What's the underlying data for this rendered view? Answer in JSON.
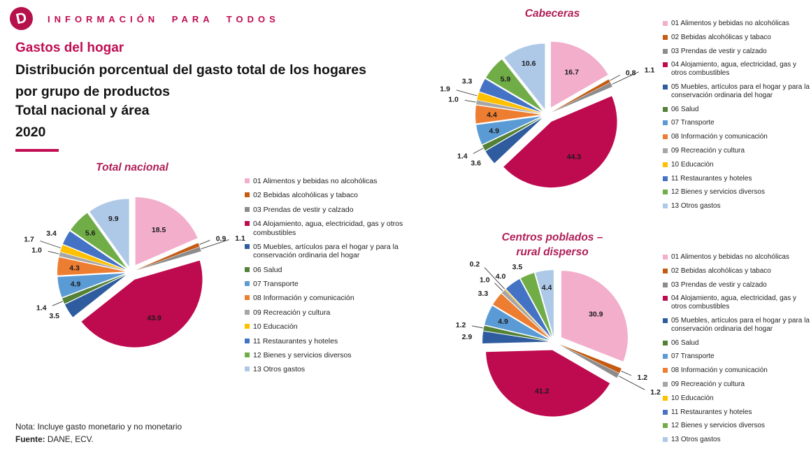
{
  "brand": {
    "logo_letter": "D",
    "tagline": "INFORMACIÓN PARA TODOS",
    "accent_color": "#C00D53"
  },
  "title_block": {
    "kicker": "Gastos del hogar",
    "heading": "Distribución porcentual del gasto total de los hogares por grupo de productos",
    "subheading": "Total nacional y área",
    "year": "2020"
  },
  "legend": {
    "items": [
      {
        "label": "01 Alimentos y bebidas no alcohólicas",
        "color": "#F2AECB"
      },
      {
        "label": "02 Bebidas alcohólicas y tabaco",
        "color": "#C55A11"
      },
      {
        "label": "03 Prendas de vestir y calzado",
        "color": "#8C8C8C"
      },
      {
        "label": "04 Alojamiento, agua, electricidad, gas y otros combustibles",
        "color": "#BE0A4E"
      },
      {
        "label": "05 Muebles, artículos para el hogar y para la conservación ordinaria del hogar",
        "color": "#2E5C9F"
      },
      {
        "label": "06 Salud",
        "color": "#538135"
      },
      {
        "label": "07 Transporte",
        "color": "#5B9BD5"
      },
      {
        "label": "08 Información y comunicación",
        "color": "#ED7D31"
      },
      {
        "label": "09 Recreación y cultura",
        "color": "#A6A6A6"
      },
      {
        "label": "10 Educación",
        "color": "#FFC000"
      },
      {
        "label": "11 Restaurantes y hoteles",
        "color": "#4472C4"
      },
      {
        "label": "12 Bienes y servicios diversos",
        "color": "#70AD47"
      },
      {
        "label": "13 Otros gastos",
        "color": "#AEC9E8"
      }
    ]
  },
  "chart_data": [
    {
      "type": "pie",
      "style": "exploded",
      "title": "Total nacional",
      "legend_position": "right",
      "categories": [
        "01 Alimentos y bebidas no alcohólicas",
        "02 Bebidas alcohólicas y tabaco",
        "03 Prendas de vestir y calzado",
        "04 Alojamiento, agua, electricidad, gas y otros combustibles",
        "05 Muebles, artículos para el hogar y para la conservación ordinaria del hogar",
        "06 Salud",
        "07 Transporte",
        "08 Información y comunicación",
        "09 Recreación y cultura",
        "10 Educación",
        "11 Restaurantes y hoteles",
        "12 Bienes y servicios diversos",
        "13 Otros gastos"
      ],
      "values": [
        18.5,
        0.9,
        1.1,
        43.9,
        3.5,
        1.4,
        4.9,
        4.3,
        1.0,
        1.7,
        3.4,
        5.6,
        9.9
      ]
    },
    {
      "type": "pie",
      "style": "exploded",
      "title": "Cabeceras",
      "legend_position": "right",
      "categories": [
        "01 Alimentos y bebidas no alcohólicas",
        "02 Bebidas alcohólicas y tabaco",
        "03 Prendas de vestir y calzado",
        "04 Alojamiento, agua, electricidad, gas y otros combustibles",
        "05 Muebles, artículos para el hogar y para la conservación ordinaria del hogar",
        "06 Salud",
        "07 Transporte",
        "08 Información y comunicación",
        "09 Recreación y cultura",
        "10 Educación",
        "11 Restaurantes y hoteles",
        "12 Bienes y servicios diversos",
        "13 Otros gastos"
      ],
      "values": [
        16.7,
        0.8,
        1.1,
        44.3,
        3.6,
        1.4,
        4.9,
        4.4,
        1.0,
        1.9,
        3.3,
        5.9,
        10.6
      ]
    },
    {
      "type": "pie",
      "style": "exploded",
      "title": "Centros poblados – rural disperso",
      "title_lines": [
        "Centros poblados –",
        "rural disperso"
      ],
      "legend_position": "right",
      "categories": [
        "01 Alimentos y bebidas no alcohólicas",
        "02 Bebidas alcohólicas y tabaco",
        "03 Prendas de vestir y calzado",
        "04 Alojamiento, agua, electricidad, gas y otros combustibles",
        "05 Muebles, artículos para el hogar y para la conservación ordinaria del hogar",
        "06 Salud",
        "07 Transporte",
        "08 Información y comunicación",
        "09 Recreación y cultura",
        "10 Educación",
        "11 Restaurantes y hoteles",
        "12 Bienes y servicios diversos",
        "13 Otros gastos"
      ],
      "values": [
        30.9,
        1.2,
        1.2,
        41.2,
        2.9,
        1.2,
        4.9,
        3.3,
        1.0,
        0.2,
        4.0,
        3.5,
        4.4
      ]
    }
  ],
  "footer": {
    "note": "Nota: Incluye gasto monetario y no monetario",
    "source_label": "Fuente:",
    "source_text": "DANE, ECV."
  }
}
